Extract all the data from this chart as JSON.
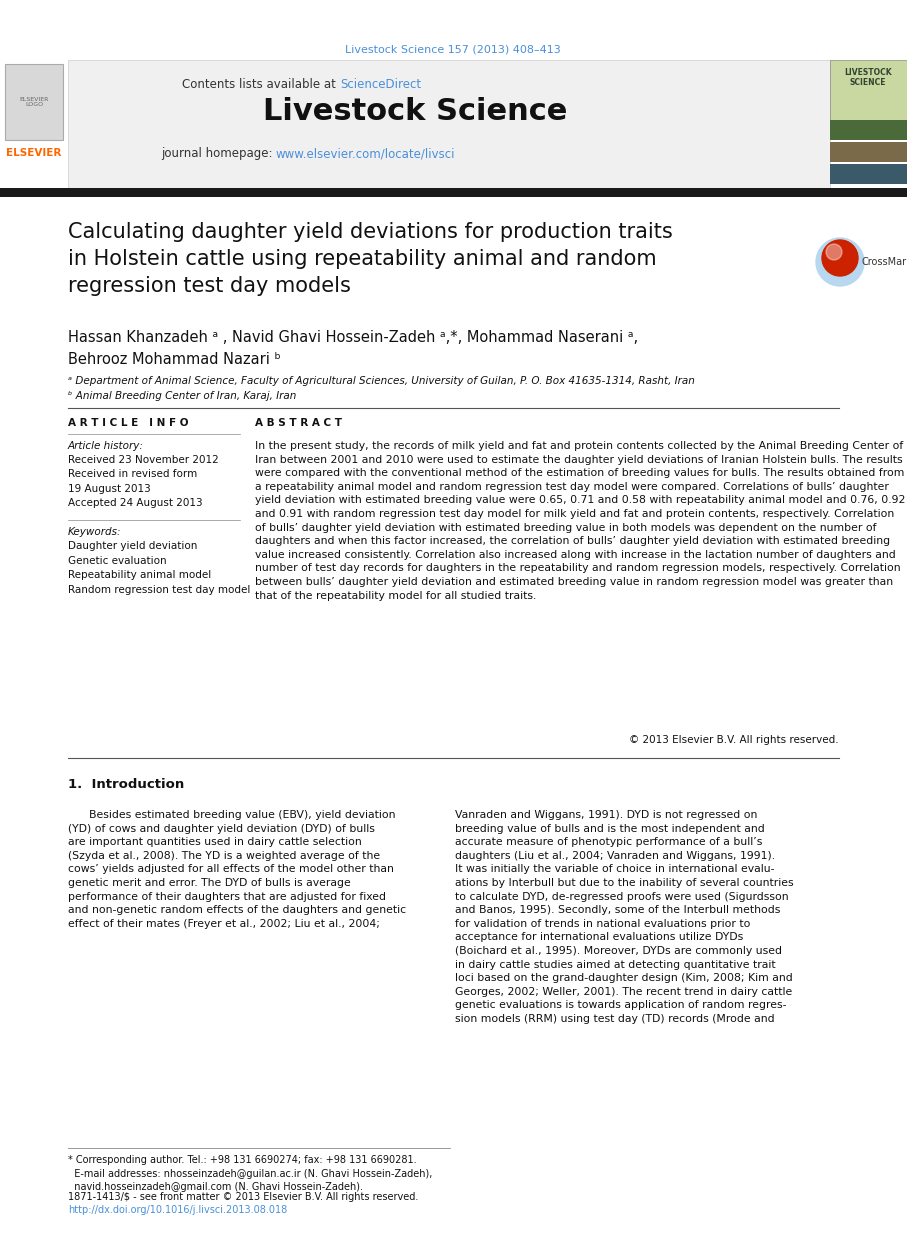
{
  "page_bg": "#ffffff",
  "header_journal_ref": "Livestock Science 157 (2013) 408–413",
  "header_journal_ref_color": "#4a90d9",
  "journal_name": "Livestock Science",
  "journal_name_size": 22,
  "contents_text": "Contents lists available at ",
  "sciencedirect_text": "ScienceDirect",
  "sciencedirect_color": "#4a90d9",
  "homepage_text": "journal homepage: ",
  "homepage_url": "www.elsevier.com/locate/livsci",
  "homepage_url_color": "#4a90d9",
  "header_bg": "#f0f0f0",
  "black_bar_color": "#1a1a1a",
  "article_title": "Calculating daughter yield deviations for production traits\nin Holstein cattle using repeatability animal and random\nregression test day models",
  "article_title_size": 15,
  "authors_line1": "Hassan Khanzadeh ᵃ , Navid Ghavi Hossein-Zadeh ᵃ,*, Mohammad Naserani ᵃ,",
  "authors_line2": "Behrooz Mohammad Nazari ᵇ",
  "affil_a": "ᵃ Department of Animal Science, Faculty of Agricultural Sciences, University of Guilan, P. O. Box 41635-1314, Rasht, Iran",
  "affil_b": "ᵇ Animal Breeding Center of Iran, Karaj, Iran",
  "section_article_info": "A R T I C L E   I N F O",
  "section_abstract": "A B S T R A C T",
  "article_history_label": "Article history:",
  "article_history": "Received 23 November 2012\nReceived in revised form\n19 August 2013\nAccepted 24 August 2013",
  "keywords_label": "Keywords:",
  "keywords": "Daughter yield deviation\nGenetic evaluation\nRepeatability animal model\nRandom regression test day model",
  "abstract_text": "In the present study, the records of milk yield and fat and protein contents collected by the Animal Breeding Center of Iran between 2001 and 2010 were used to estimate the daughter yield deviations of Iranian Holstein bulls. The results were compared with the conventional method of the estimation of breeding values for bulls. The results obtained from a repeatability animal model and random regression test day model were compared. Correlations of bulls’ daughter yield deviation with estimated breeding value were 0.65, 0.71 and 0.58 with repeatability animal model and 0.76, 0.92 and 0.91 with random regression test day model for milk yield and fat and protein contents, respectively. Correlation of bulls’ daughter yield deviation with estimated breeding value in both models was dependent on the number of daughters and when this factor increased, the correlation of bulls’ daughter yield deviation with estimated breeding value increased consistently. Correlation also increased along with increase in the lactation number of daughters and number of test day records for daughters in the repeatability and random regression models, respectively. Correlation between bulls’ daughter yield deviation and estimated breeding value in random regression model was greater than that of the repeatability model for all studied traits.",
  "copyright_text": "© 2013 Elsevier B.V. All rights reserved.",
  "intro_title": "1.  Introduction",
  "intro_col1": "      Besides estimated breeding value (EBV), yield deviation\n(YD) of cows and daughter yield deviation (DYD) of bulls\nare important quantities used in dairy cattle selection\n(Szyda et al., 2008). The YD is a weighted average of the\ncows’ yields adjusted for all effects of the model other than\ngenetic merit and error. The DYD of bulls is average\nperformance of their daughters that are adjusted for fixed\nand non-genetic random effects of the daughters and genetic\neffect of their mates (Freyer et al., 2002; Liu et al., 2004;",
  "intro_col2": "Vanraden and Wiggans, 1991). DYD is not regressed on\nbreeding value of bulls and is the most independent and\naccurate measure of phenotypic performance of a bull’s\ndaughters (Liu et al., 2004; Vanraden and Wiggans, 1991).\nIt was initially the variable of choice in international evalu-\nations by Interbull but due to the inability of several countries\nto calculate DYD, de-regressed proofs were used (Sigurdsson\nand Banos, 1995). Secondly, some of the Interbull methods\nfor validation of trends in national evaluations prior to\nacceptance for international evaluations utilize DYDs\n(Boichard et al., 1995). Moreover, DYDs are commonly used\nin dairy cattle studies aimed at detecting quantitative trait\nloci based on the grand-daughter design (Kim, 2008; Kim and\nGeorges, 2002; Weller, 2001). The recent trend in dairy cattle\ngenetic evaluations is towards application of random regres-\nsion models (RRM) using test day (TD) records (Mrode and",
  "footnote_text": "* Corresponding author. Tel.: +98 131 6690274; fax: +98 131 6690281.\n  E-mail addresses: nhosseinzadeh@guilan.ac.ir (N. Ghavi Hossein-Zadeh),\n  navid.hosseinzadeh@gmail.com (N. Ghavi Hossein-Zadeh).",
  "issn_text": "1871-1413/$ - see front matter © 2013 Elsevier B.V. All rights reserved.",
  "doi_text": "http://dx.doi.org/10.1016/j.livsci.2013.08.018",
  "doi_color": "#4a90d9",
  "link_color": "#4a90d9"
}
